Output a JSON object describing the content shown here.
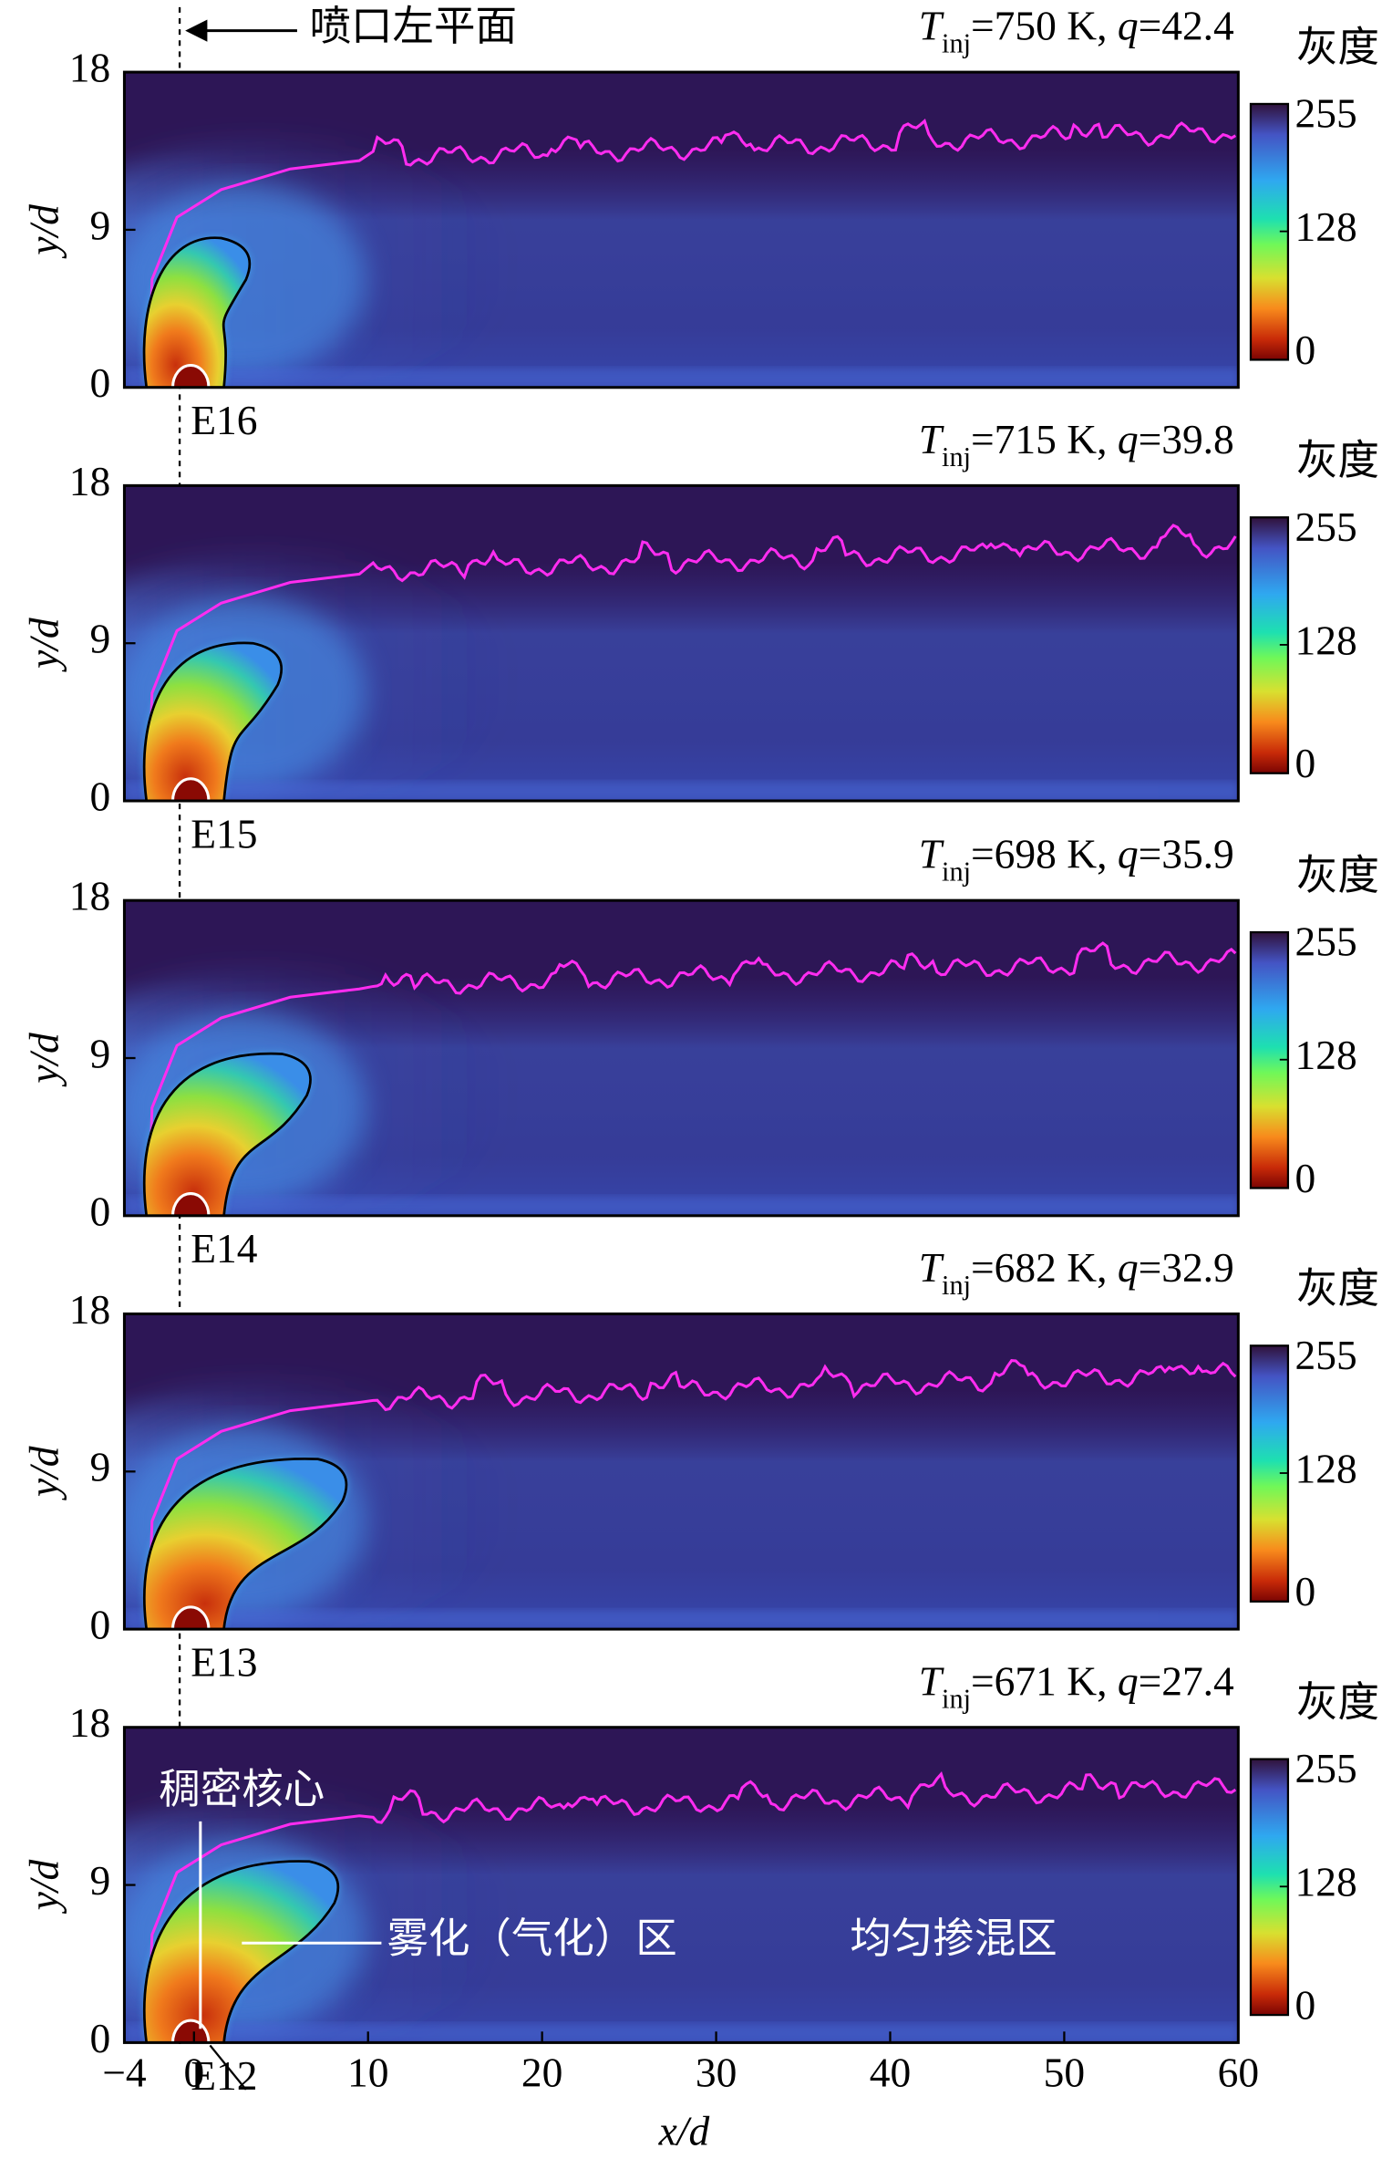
{
  "chart_data": [
    {
      "type": "heatmap",
      "title_parts": [
        "T",
        "inj",
        "=750 K, ",
        "q",
        "=42.4"
      ],
      "panel_label": "E16",
      "ylabel": "y/d",
      "ylim": [
        0,
        18
      ],
      "yticks": [
        0,
        9,
        18
      ],
      "nozzle_label": "喷口左平面",
      "colorbar": {
        "label": "灰度",
        "lim": [
          0,
          255
        ],
        "ticks": [
          0,
          128,
          255
        ]
      }
    },
    {
      "type": "heatmap",
      "title_parts": [
        "T",
        "inj",
        "=715 K, ",
        "q",
        "=39.8"
      ],
      "panel_label": "E15",
      "ylabel": "y/d",
      "ylim": [
        0,
        18
      ],
      "yticks": [
        0,
        9,
        18
      ],
      "colorbar": {
        "label": "灰度",
        "lim": [
          0,
          255
        ],
        "ticks": [
          0,
          128,
          255
        ]
      }
    },
    {
      "type": "heatmap",
      "title_parts": [
        "T",
        "inj",
        "=698 K, ",
        "q",
        "=35.9"
      ],
      "panel_label": "E14",
      "ylabel": "y/d",
      "ylim": [
        0,
        18
      ],
      "yticks": [
        0,
        9,
        18
      ],
      "colorbar": {
        "label": "灰度",
        "lim": [
          0,
          255
        ],
        "ticks": [
          0,
          128,
          255
        ]
      }
    },
    {
      "type": "heatmap",
      "title_parts": [
        "T",
        "inj",
        "=682 K, ",
        "q",
        "=32.9"
      ],
      "panel_label": "E13",
      "ylabel": "y/d",
      "ylim": [
        0,
        18
      ],
      "yticks": [
        0,
        9,
        18
      ],
      "colorbar": {
        "label": "灰度",
        "lim": [
          0,
          255
        ],
        "ticks": [
          0,
          128,
          255
        ]
      }
    },
    {
      "type": "heatmap",
      "title_parts": [
        "T",
        "inj",
        "=671 K, ",
        "q",
        "=27.4"
      ],
      "panel_label": "E12",
      "ylabel": "y/d",
      "ylim": [
        0,
        18
      ],
      "yticks": [
        0,
        9,
        18
      ],
      "xlabel": "x/d",
      "xlim": [
        -4,
        60
      ],
      "xticks": [
        {
          "value": -4,
          "label": "−4"
        },
        0,
        10,
        20,
        30,
        40,
        50,
        60
      ],
      "dense_core": "稠密核心",
      "atomization_zone": "雾化（气化）区",
      "mixing_zone": "均匀掺混区",
      "colorbar": {
        "label": "灰度",
        "lim": [
          0,
          255
        ],
        "ticks": [
          0,
          128,
          255
        ]
      }
    }
  ]
}
